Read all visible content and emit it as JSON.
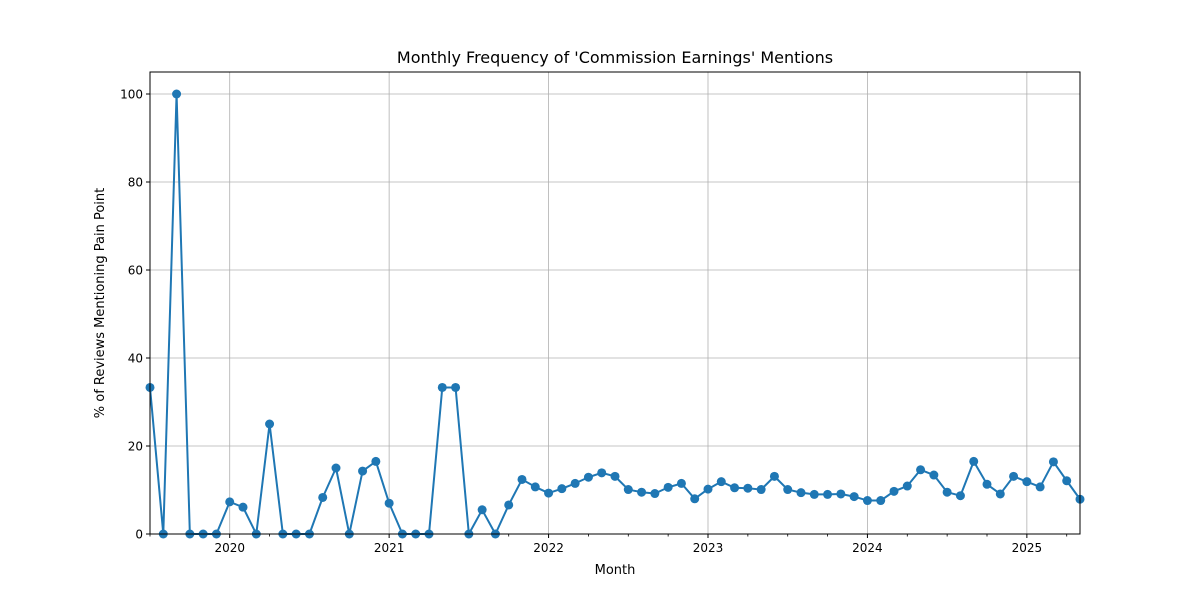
{
  "chart_data": {
    "type": "line",
    "title": "Monthly Frequency of 'Commission Earnings' Mentions",
    "xlabel": "Month",
    "ylabel": "% of Reviews Mentioning Pain Point",
    "ylim": [
      0,
      105
    ],
    "yticks": [
      0,
      20,
      40,
      60,
      80,
      100
    ],
    "xlim": [
      "2019-07",
      "2025-05"
    ],
    "xticks": [
      {
        "date": "2020-01",
        "label": "2020"
      },
      {
        "date": "2021-01",
        "label": "2021"
      },
      {
        "date": "2022-01",
        "label": "2022"
      },
      {
        "date": "2023-01",
        "label": "2023"
      },
      {
        "date": "2024-01",
        "label": "2024"
      },
      {
        "date": "2025-01",
        "label": "2025"
      }
    ],
    "grid": true,
    "color": "#1f77b4",
    "x": [
      "2019-07",
      "2019-08",
      "2019-09",
      "2019-10",
      "2019-11",
      "2019-12",
      "2020-01",
      "2020-02",
      "2020-03",
      "2020-04",
      "2020-05",
      "2020-06",
      "2020-07",
      "2020-08",
      "2020-09",
      "2020-10",
      "2020-11",
      "2020-12",
      "2021-01",
      "2021-02",
      "2021-03",
      "2021-04",
      "2021-05",
      "2021-06",
      "2021-07",
      "2021-08",
      "2021-09",
      "2021-10",
      "2021-11",
      "2021-12",
      "2022-01",
      "2022-02",
      "2022-03",
      "2022-04",
      "2022-05",
      "2022-06",
      "2022-07",
      "2022-08",
      "2022-09",
      "2022-10",
      "2022-11",
      "2022-12",
      "2023-01",
      "2023-02",
      "2023-03",
      "2023-04",
      "2023-05",
      "2023-06",
      "2023-07",
      "2023-08",
      "2023-09",
      "2023-10",
      "2023-11",
      "2023-12",
      "2024-01",
      "2024-02",
      "2024-03",
      "2024-04",
      "2024-05",
      "2024-06",
      "2024-07",
      "2024-08",
      "2024-09",
      "2024-10",
      "2024-11",
      "2024-12",
      "2025-01",
      "2025-02",
      "2025-03",
      "2025-04",
      "2025-05"
    ],
    "y": [
      33.3,
      0,
      100,
      0,
      0,
      0,
      7.3,
      6.1,
      0,
      25,
      0,
      0,
      0,
      8.3,
      15,
      0,
      14.3,
      16.5,
      7,
      0,
      0,
      0,
      33.3,
      33.3,
      0,
      5.5,
      0,
      6.6,
      12.4,
      10.7,
      9.3,
      10.3,
      11.5,
      12.9,
      13.9,
      13.1,
      10.1,
      9.5,
      9.2,
      10.6,
      11.5,
      8,
      10.2,
      11.9,
      10.5,
      10.4,
      10.1,
      13.1,
      10.1,
      9.4,
      9,
      9,
      9.1,
      8.5,
      7.6,
      7.6,
      9.7,
      10.9,
      14.6,
      13.4,
      9.5,
      8.7,
      16.5,
      11.3,
      9.1,
      13.1,
      11.9,
      10.7,
      16.4,
      12.1,
      7.9
    ]
  }
}
